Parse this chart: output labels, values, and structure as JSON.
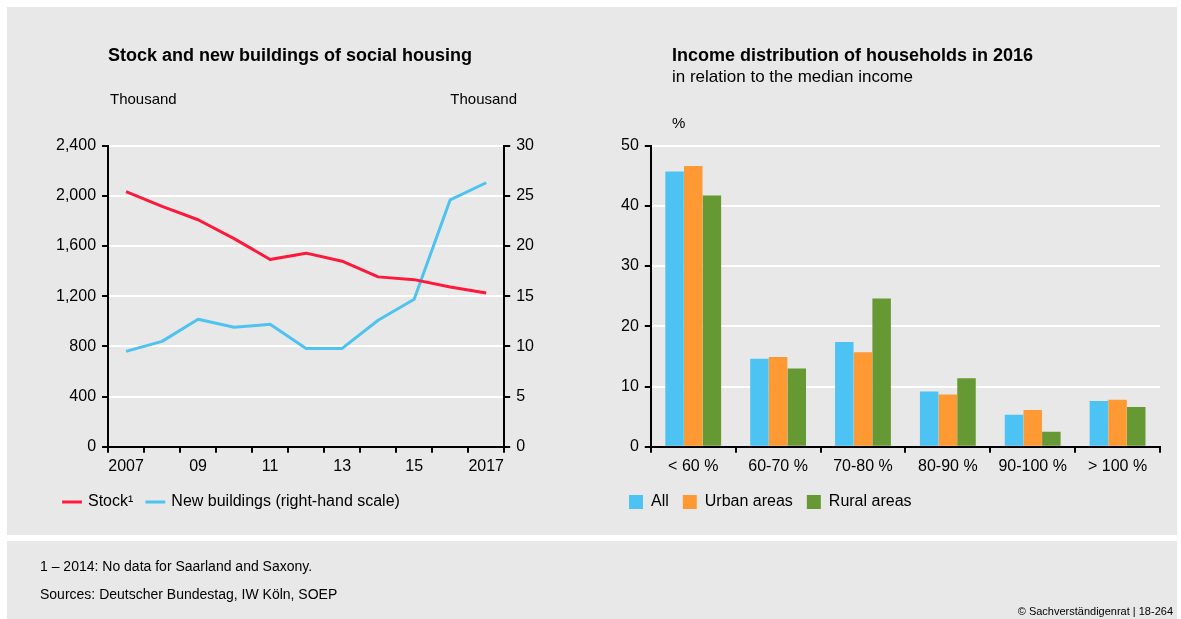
{
  "chart_data": [
    {
      "type": "line",
      "title": "Stock and new buildings of social housing",
      "ylabel": "Thousand",
      "y2label": "Thousand",
      "categories": [
        "2007",
        null,
        "09",
        null,
        "11",
        null,
        "13",
        null,
        "15",
        null,
        "2017"
      ],
      "series": [
        {
          "name": "Stock¹",
          "color": "#ff1a3c",
          "values": [
            2034,
            1915,
            1809,
            1659,
            1493,
            1543,
            1479,
            1354,
            1332,
            1274,
            1226
          ]
        },
        {
          "name": "New buildings (right-hand scale)",
          "color": "#4fc3f0",
          "axis": "y2",
          "values": [
            9.5,
            10.5,
            12.7,
            11.9,
            12.2,
            9.8,
            9.8,
            12.6,
            14.7,
            24.6,
            26.3
          ]
        }
      ],
      "ylim": [
        0,
        2400
      ],
      "yticks": [
        0,
        400,
        800,
        {
          "value": 1200,
          "label": "1,200"
        },
        {
          "value": 1600,
          "label": "1,600"
        },
        {
          "value": 2000,
          "label": "2,000"
        },
        {
          "value": 2400,
          "label": "2,400"
        }
      ],
      "y2lim": [
        0,
        30
      ],
      "y2ticks": [
        0,
        5,
        10,
        15,
        20,
        25,
        30
      ],
      "grid": "y",
      "legend": "bottom",
      "annotations": [
        "1 – 2014: No data for Saarland and Saxony.",
        "Sources: Deutscher Bundestag, IW Köln, SOEP",
        "© Sachverständigenrat | 18-264"
      ]
    },
    {
      "type": "bar",
      "title": "Income distribution of households in 2016",
      "subtitle": "in relation to the median income",
      "ylabel": "%",
      "categories": [
        "< 60 %",
        "60-70 %",
        "70-80 %",
        "80-90 %",
        "90-100 %",
        "> 100 %"
      ],
      "series": [
        {
          "name": "All",
          "color": "#4cc3f2",
          "values": [
            45.7,
            14.6,
            17.4,
            9.2,
            5.3,
            7.6
          ]
        },
        {
          "name": "Urban areas",
          "color": "#ff9933",
          "values": [
            46.6,
            14.9,
            15.7,
            8.7,
            6.1,
            7.8
          ]
        },
        {
          "name": "Rural areas",
          "color": "#669933",
          "values": [
            41.7,
            13.0,
            24.6,
            11.4,
            2.5,
            6.6
          ]
        }
      ],
      "ylim": [
        0,
        50
      ],
      "yticks": [
        0,
        10,
        20,
        30,
        40,
        50
      ],
      "grid": "y",
      "legend": "bottom"
    }
  ]
}
